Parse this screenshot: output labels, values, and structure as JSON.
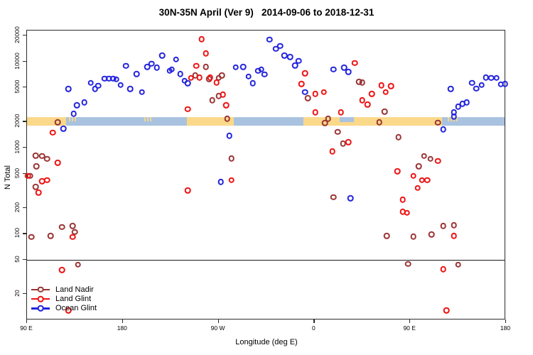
{
  "title": "30N-35N April (Ver 9)   2014-09-06 to 2018-12-31",
  "colors": {
    "land_nadir": "#993333",
    "land_glint": "#ee1111",
    "ocean_glint": "#2222dd",
    "band_land": "#fbd98a",
    "band_ocean": "#a9c2df",
    "axis": "#2b2b2b"
  },
  "legend": [
    {
      "label": "Land Nadir",
      "series": "land_nadir"
    },
    {
      "label": "Land Glint",
      "series": "land_glint"
    },
    {
      "label": "Ocean Glint",
      "series": "ocean_glint"
    }
  ],
  "chart_data": {
    "type": "scatter",
    "title": "30N-35N April (Ver 9)   2014-09-06 to 2018-12-31",
    "xlabel": "Longitude (deg E)",
    "ylabel": "N Total",
    "x_axis": {
      "note": "longitude unwrapped eastward from 90E; 90=90E, 180=180, 270=90W, 360=0, 450=90E, 540=180",
      "range": [
        90,
        540
      ],
      "ticks": [
        90,
        180,
        270,
        360,
        450,
        540
      ],
      "tick_labels": [
        "90 E",
        "180",
        "90 W",
        "0",
        "90 E",
        "180"
      ]
    },
    "y_axis": {
      "scale": "log",
      "range": [
        11,
        22500
      ],
      "ticks": [
        20,
        50,
        100,
        200,
        500,
        1000,
        2000,
        5000,
        10000,
        20000
      ],
      "tick_labels": [
        "20",
        "50",
        "100",
        "200",
        "500",
        "1000",
        "2000",
        "5000",
        "10000",
        "20000"
      ]
    },
    "reference_line_y": 50,
    "expected_band": {
      "center_N": 2000,
      "top_N": 2250,
      "bottom_N": 1790,
      "ocean_color": "#a9c2df",
      "land_color": "#fbd98a",
      "land_segments_deg": [
        [
          90,
          127
        ],
        [
          240,
          284
        ],
        [
          350,
          480
        ]
      ],
      "ocean_notch_deg": [
        384,
        397
      ],
      "land_fringe_deg": [
        [
          128,
          137
        ],
        [
          199,
          208
        ],
        [
          484,
          496
        ]
      ]
    },
    "series": [
      {
        "name": "Land Nadir",
        "color_key": "land_nadir",
        "points": [
          [
            119,
            1970
          ],
          [
            98,
            810
          ],
          [
            104,
            800
          ],
          [
            109,
            740
          ],
          [
            99,
            610
          ],
          [
            93,
            470
          ],
          [
            98,
            350
          ],
          [
            112,
            95
          ],
          [
            94,
            92
          ],
          [
            123,
            120
          ],
          [
            133,
            124
          ],
          [
            135,
            105
          ],
          [
            138,
            44
          ],
          [
            258,
            8700
          ],
          [
            248,
            6900
          ],
          [
            261,
            6300
          ],
          [
            270,
            6430
          ],
          [
            273,
            6900
          ],
          [
            264,
            3560
          ],
          [
            270,
            4000
          ],
          [
            278,
            2180
          ],
          [
            282,
            750
          ],
          [
            354,
            3760
          ],
          [
            370,
            1940
          ],
          [
            373,
            2180
          ],
          [
            382,
            1530
          ],
          [
            387,
            1120
          ],
          [
            378,
            266
          ],
          [
            402,
            5840
          ],
          [
            405,
            5730
          ],
          [
            426,
            2620
          ],
          [
            421,
            1970
          ],
          [
            476,
            1950
          ],
          [
            439,
            1330
          ],
          [
            463,
            800
          ],
          [
            469,
            740
          ],
          [
            458,
            610
          ],
          [
            481,
            124
          ],
          [
            491,
            126
          ],
          [
            453,
            93
          ],
          [
            470,
            98
          ],
          [
            428,
            95
          ],
          [
            448,
            45
          ],
          [
            495,
            44
          ]
        ]
      },
      {
        "name": "Land Glint",
        "color_key": "land_glint",
        "points": [
          [
            114,
            1500
          ],
          [
            119,
            670
          ],
          [
            91,
            470
          ],
          [
            104,
            410
          ],
          [
            109,
            420
          ],
          [
            101,
            300
          ],
          [
            133,
            92
          ],
          [
            123,
            38
          ],
          [
            129,
            13
          ],
          [
            241,
            2810
          ],
          [
            241,
            320
          ],
          [
            254,
            18200
          ],
          [
            258,
            12400
          ],
          [
            249,
            8900
          ],
          [
            252,
            6550
          ],
          [
            262,
            6550
          ],
          [
            268,
            5700
          ],
          [
            274,
            4150
          ],
          [
            277,
            3100
          ],
          [
            282,
            420
          ],
          [
            244,
            6430
          ],
          [
            351,
            7300
          ],
          [
            348,
            5500
          ],
          [
            361,
            4200
          ],
          [
            369,
            4400
          ],
          [
            361,
            2580
          ],
          [
            385,
            2580
          ],
          [
            377,
            910
          ],
          [
            392,
            1160
          ],
          [
            398,
            9600
          ],
          [
            423,
            5300
          ],
          [
            432,
            5200
          ],
          [
            427,
            4400
          ],
          [
            414,
            4230
          ],
          [
            410,
            3180
          ],
          [
            405,
            3560
          ],
          [
            438,
            530
          ],
          [
            453,
            470
          ],
          [
            461,
            420
          ],
          [
            466,
            420
          ],
          [
            457,
            340
          ],
          [
            476,
            700
          ],
          [
            443,
            250
          ],
          [
            443,
            180
          ],
          [
            447,
            175
          ],
          [
            491,
            95
          ],
          [
            481,
            39
          ],
          [
            484,
            13
          ]
        ]
      },
      {
        "name": "Ocean Glint",
        "color_key": "ocean_glint",
        "points": [
          [
            129,
            4800
          ],
          [
            124,
            1660
          ],
          [
            134,
            2480
          ],
          [
            137,
            3100
          ],
          [
            144,
            3370
          ],
          [
            150,
            5630
          ],
          [
            154,
            4830
          ],
          [
            157,
            5220
          ],
          [
            163,
            6330
          ],
          [
            167,
            6330
          ],
          [
            171,
            6330
          ],
          [
            174,
            6200
          ],
          [
            178,
            5320
          ],
          [
            183,
            8900
          ],
          [
            187,
            4830
          ],
          [
            193,
            7200
          ],
          [
            198,
            4400
          ],
          [
            203,
            8700
          ],
          [
            207,
            9400
          ],
          [
            212,
            8500
          ],
          [
            217,
            11700
          ],
          [
            224,
            7800
          ],
          [
            226,
            8100
          ],
          [
            230,
            10600
          ],
          [
            234,
            7200
          ],
          [
            238,
            6000
          ],
          [
            241,
            5600
          ],
          [
            286,
            8600
          ],
          [
            293,
            8700
          ],
          [
            298,
            6700
          ],
          [
            302,
            5570
          ],
          [
            307,
            7800
          ],
          [
            310,
            8100
          ],
          [
            313,
            7100
          ],
          [
            318,
            18000
          ],
          [
            324,
            14000
          ],
          [
            328,
            15200
          ],
          [
            332,
            11700
          ],
          [
            337,
            11300
          ],
          [
            342,
            9000
          ],
          [
            345,
            10200
          ],
          [
            351,
            4400
          ],
          [
            378,
            8100
          ],
          [
            388,
            8500
          ],
          [
            392,
            7600
          ],
          [
            280,
            1370
          ],
          [
            272,
            400
          ],
          [
            394,
            260
          ],
          [
            488,
            4800
          ],
          [
            508,
            5630
          ],
          [
            512,
            4870
          ],
          [
            517,
            5320
          ],
          [
            521,
            6550
          ],
          [
            526,
            6430
          ],
          [
            531,
            6430
          ],
          [
            535,
            5420
          ],
          [
            539,
            5520
          ],
          [
            491,
            2580
          ],
          [
            495,
            3000
          ],
          [
            499,
            3240
          ],
          [
            503,
            3370
          ],
          [
            481,
            1640
          ],
          [
            491,
            2300
          ]
        ]
      }
    ]
  }
}
